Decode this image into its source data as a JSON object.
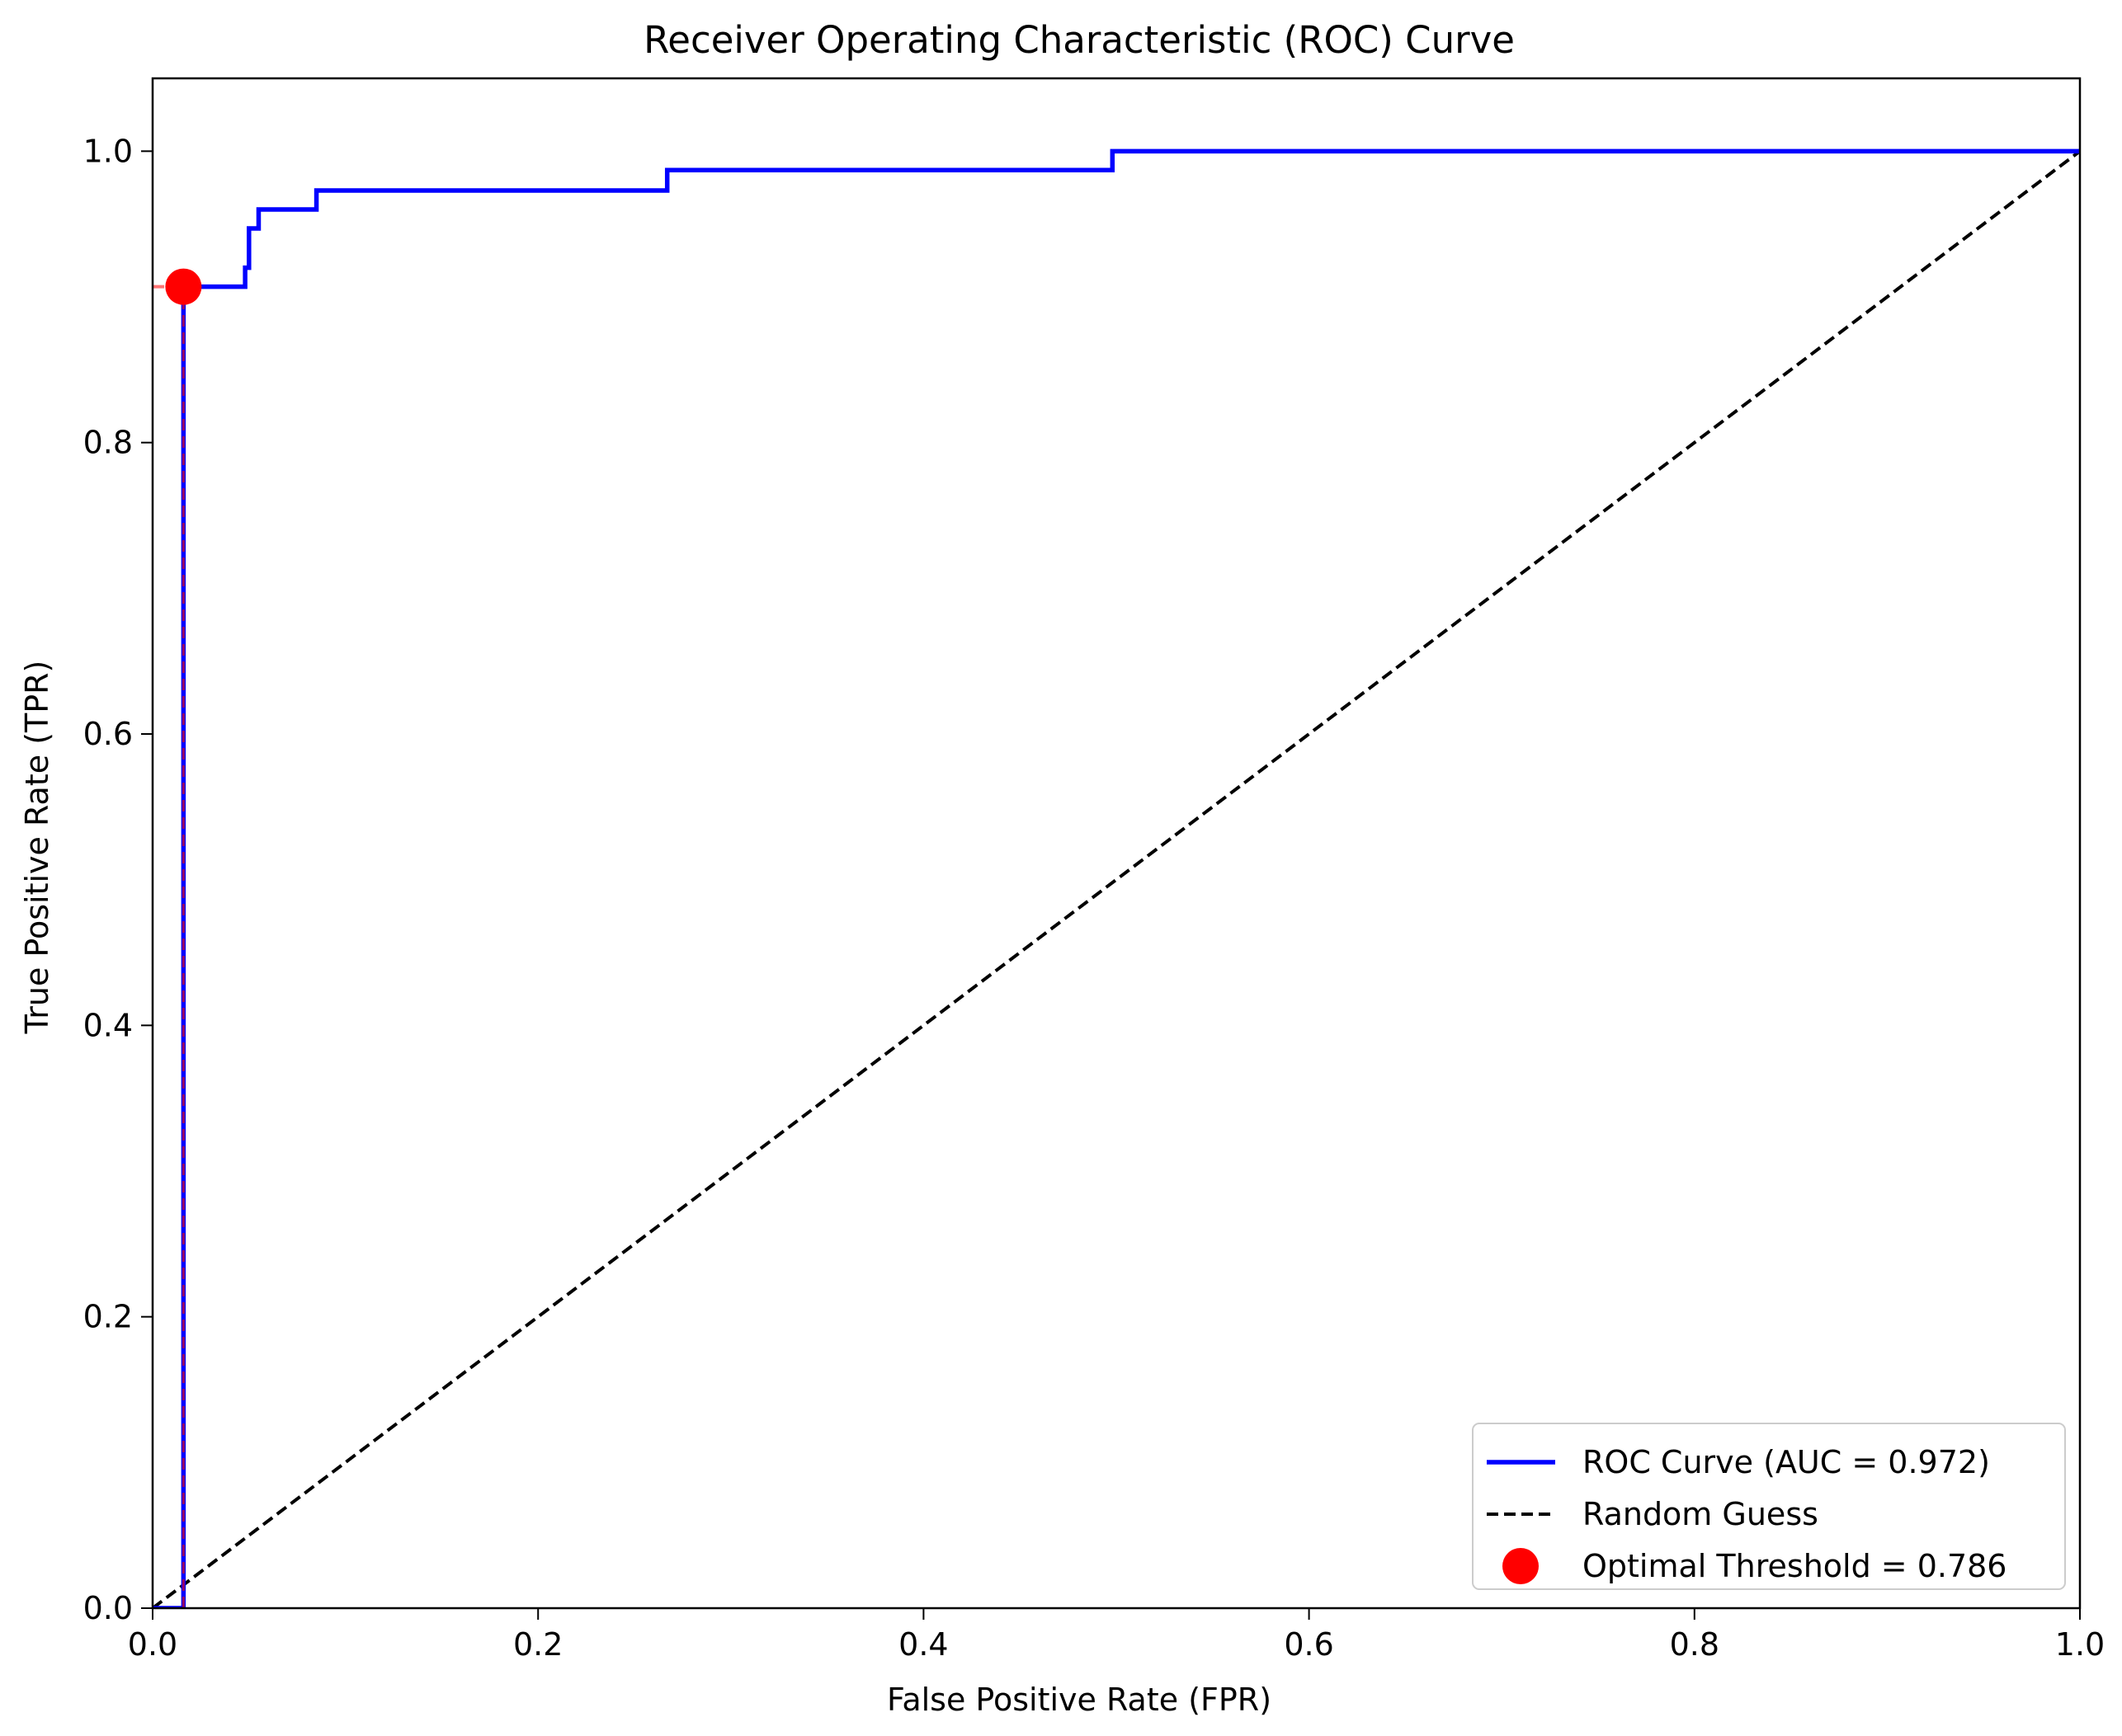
{
  "chart_data": {
    "type": "line",
    "title": "Receiver Operating Characteristic (ROC) Curve",
    "xlabel": "False Positive Rate (FPR)",
    "ylabel": "True Positive Rate (TPR)",
    "xlim": [
      0.0,
      1.0
    ],
    "ylim": [
      0.0,
      1.05
    ],
    "xticks": [
      0.0,
      0.2,
      0.4,
      0.6,
      0.8,
      1.0
    ],
    "xtick_labels": [
      "0.0",
      "0.2",
      "0.4",
      "0.6",
      "0.8",
      "1.0"
    ],
    "yticks": [
      0.0,
      0.2,
      0.4,
      0.6,
      0.8,
      1.0
    ],
    "ytick_labels": [
      "0.0",
      "0.2",
      "0.4",
      "0.6",
      "0.8",
      "1.0"
    ],
    "grid": false,
    "legend_position": "lower right",
    "series": [
      {
        "name": "ROC Curve (AUC = 0.972)",
        "style": "solid",
        "color": "#0000ff",
        "x": [
          0.0,
          0.016,
          0.016,
          0.048,
          0.048,
          0.05,
          0.05,
          0.055,
          0.055,
          0.085,
          0.085,
          0.267,
          0.267,
          0.498,
          0.498,
          1.0
        ],
        "y": [
          0.0,
          0.0,
          0.907,
          0.907,
          0.92,
          0.92,
          0.947,
          0.947,
          0.96,
          0.96,
          0.973,
          0.973,
          0.987,
          0.987,
          1.0,
          1.0
        ]
      },
      {
        "name": "Random Guess",
        "style": "dashed",
        "color": "#000000",
        "x": [
          0.0,
          1.0
        ],
        "y": [
          0.0,
          1.0
        ]
      }
    ],
    "optimal_point": {
      "name": "Optimal Threshold = 0.786",
      "x": 0.016,
      "y": 0.907,
      "color": "#ff0000"
    },
    "reference_lines_color": "#ff0000"
  }
}
